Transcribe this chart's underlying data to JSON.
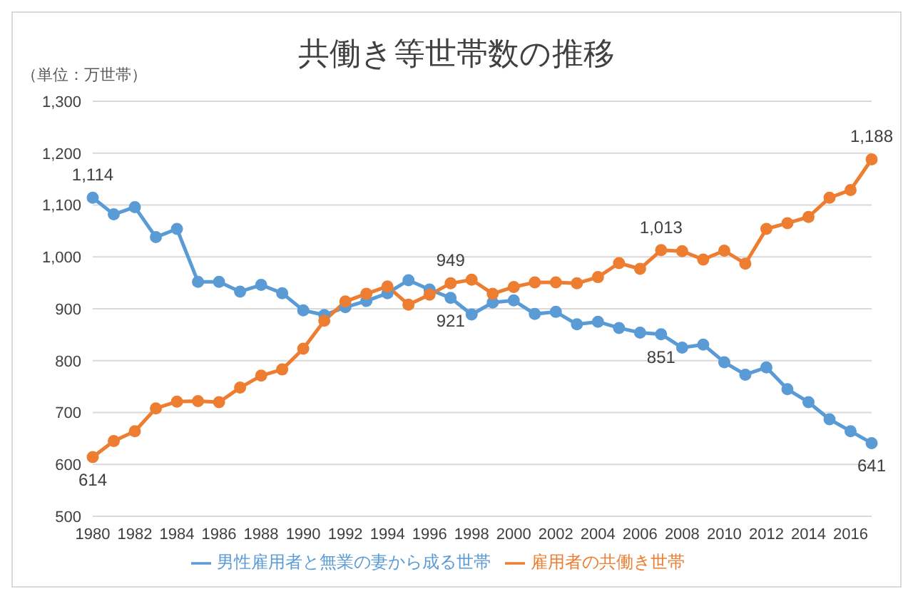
{
  "chart_data": {
    "type": "line",
    "title": "共働き等世帯数の推移",
    "ylabel": "（単位：万世帯）",
    "categories": [
      "1980",
      null,
      "1982",
      null,
      "1984",
      null,
      "1986",
      null,
      "1988",
      null,
      "1990",
      null,
      "1992",
      null,
      "1994",
      null,
      "1996",
      null,
      "1998",
      null,
      "2000",
      null,
      "2002",
      null,
      "2004",
      null,
      "2006",
      null,
      "2008",
      null,
      "2010",
      null,
      "2012",
      null,
      "2014",
      null,
      "2016",
      null
    ],
    "series": [
      {
        "name": "男性雇用者と無業の妻から成る世帯",
        "color": "#5b9bd5",
        "values": [
          1114,
          1082,
          1096,
          1038,
          1054,
          952,
          952,
          933,
          946,
          930,
          897,
          888,
          903,
          915,
          930,
          955,
          937,
          921,
          889,
          912,
          916,
          890,
          894,
          870,
          875,
          863,
          854,
          851,
          825,
          831,
          797,
          773,
          787,
          745,
          720,
          687,
          664,
          641
        ],
        "value_labels": [
          "1,114",
          null,
          null,
          null,
          null,
          null,
          null,
          null,
          null,
          null,
          null,
          null,
          null,
          null,
          null,
          null,
          null,
          "921",
          null,
          null,
          null,
          null,
          null,
          null,
          null,
          null,
          null,
          "851",
          null,
          null,
          null,
          null,
          null,
          null,
          null,
          null,
          null,
          "641"
        ]
      },
      {
        "name": "雇用者の共働き世帯",
        "color": "#ed7d31",
        "values": [
          614,
          645,
          664,
          708,
          721,
          722,
          720,
          748,
          771,
          783,
          823,
          877,
          914,
          929,
          943,
          908,
          927,
          949,
          956,
          929,
          942,
          951,
          951,
          949,
          961,
          988,
          977,
          1013,
          1011,
          995,
          1012,
          987,
          1054,
          1065,
          1077,
          1114,
          1129,
          1188
        ],
        "value_labels": [
          "614",
          null,
          null,
          null,
          null,
          null,
          null,
          null,
          null,
          null,
          null,
          null,
          null,
          null,
          null,
          null,
          null,
          "949",
          null,
          null,
          null,
          null,
          null,
          null,
          null,
          null,
          null,
          "1,013",
          null,
          null,
          null,
          null,
          null,
          null,
          null,
          null,
          null,
          "1,188"
        ]
      }
    ],
    "ylim": [
      500,
      1300
    ],
    "yticks": [
      500,
      600,
      700,
      800,
      900,
      {
        "value": 1000,
        "label": "1,000"
      },
      {
        "value": 1100,
        "label": "1,100"
      },
      {
        "value": 1200,
        "label": "1,200"
      },
      {
        "value": 1300,
        "label": "1,300"
      }
    ],
    "grid": "y",
    "legend": "bottom",
    "marker": "circle",
    "line_style": "solid"
  }
}
